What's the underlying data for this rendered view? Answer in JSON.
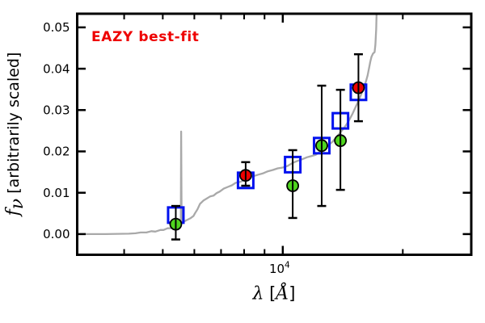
{
  "figure": {
    "annotation": {
      "text": "EAZY best-fit",
      "color": "#ee0000"
    },
    "xlabel_parts": {
      "lambda": "λ",
      "open": " [",
      "angstrom": "Å",
      "close": "]"
    },
    "ylabel_parts": {
      "f": "f",
      "sub": "ν",
      "rest": " [arbitrarily scaled]"
    }
  },
  "chart_data": {
    "type": "line+scatter",
    "title": "",
    "annotation": "EAZY best-fit",
    "xlabel": "λ [Å]",
    "ylabel": "f_ν [arbitrarily scaled]",
    "x_scale": "log",
    "y_scale": "linear",
    "xlim": [
      3050,
      29700
    ],
    "ylim": [
      -0.005,
      0.0533
    ],
    "grid": false,
    "legend": "none",
    "colors": {
      "red": "#ee0000",
      "green": "#4fd41e",
      "blue": "#0011ee",
      "gray": "#a9a9a9",
      "black": "#000000"
    },
    "x_ticks_major": [
      {
        "value": 10000,
        "label_base": "10",
        "label_exp": "4"
      }
    ],
    "x_ticks_minor": [
      4000,
      5000,
      6000,
      7000,
      8000,
      9000,
      20000
    ],
    "y_ticks": [
      {
        "value": 0.0,
        "label": "0.00"
      },
      {
        "value": 0.01,
        "label": "0.01"
      },
      {
        "value": 0.02,
        "label": "0.02"
      },
      {
        "value": 0.03,
        "label": "0.03"
      },
      {
        "value": 0.04,
        "label": "0.04"
      },
      {
        "value": 0.05,
        "label": "0.05"
      }
    ],
    "series": [
      {
        "name": "eazy-model-spectrum",
        "type": "line",
        "color_key": "gray",
        "points": [
          [
            3050,
            0
          ],
          [
            3600,
            0
          ],
          [
            4110,
            0.0001
          ],
          [
            4270,
            0.0002
          ],
          [
            4400,
            0.0004
          ],
          [
            4550,
            0.0004
          ],
          [
            4680,
            0.0007
          ],
          [
            4790,
            0.0006
          ],
          [
            4930,
            0.001
          ],
          [
            5020,
            0.001
          ],
          [
            5140,
            0.0014
          ],
          [
            5240,
            0.0014
          ],
          [
            5340,
            0.0019
          ],
          [
            5470,
            0.0023
          ],
          [
            5530,
            0.0026
          ],
          [
            5550,
            0.0027
          ],
          [
            5560,
            0.0248
          ],
          [
            5575,
            0.0027
          ],
          [
            5720,
            0.0033
          ],
          [
            5860,
            0.0038
          ],
          [
            5970,
            0.0044
          ],
          [
            6020,
            0.005
          ],
          [
            6110,
            0.006
          ],
          [
            6200,
            0.0073
          ],
          [
            6320,
            0.0081
          ],
          [
            6420,
            0.0085
          ],
          [
            6570,
            0.0091
          ],
          [
            6700,
            0.0093
          ],
          [
            6820,
            0.0099
          ],
          [
            6950,
            0.0103
          ],
          [
            7110,
            0.011
          ],
          [
            7280,
            0.0114
          ],
          [
            7450,
            0.0118
          ],
          [
            7620,
            0.0124
          ],
          [
            7800,
            0.0126
          ],
          [
            7980,
            0.013
          ],
          [
            8210,
            0.0136
          ],
          [
            8440,
            0.014
          ],
          [
            8690,
            0.0144
          ],
          [
            8930,
            0.0147
          ],
          [
            9180,
            0.0152
          ],
          [
            9440,
            0.0155
          ],
          [
            9710,
            0.0159
          ],
          [
            10000,
            0.0161
          ],
          [
            10290,
            0.0165
          ],
          [
            10580,
            0.0172
          ],
          [
            10880,
            0.0177
          ],
          [
            11190,
            0.0181
          ],
          [
            11510,
            0.0186
          ],
          [
            11830,
            0.0189
          ],
          [
            12110,
            0.0192
          ],
          [
            12390,
            0.0199
          ],
          [
            12680,
            0.0207
          ],
          [
            12970,
            0.0213
          ],
          [
            13310,
            0.0223
          ],
          [
            13630,
            0.0234
          ],
          [
            13950,
            0.0246
          ],
          [
            14280,
            0.0258
          ],
          [
            14620,
            0.0273
          ],
          [
            14960,
            0.0291
          ],
          [
            15240,
            0.0308
          ],
          [
            15520,
            0.0324
          ],
          [
            15800,
            0.0343
          ],
          [
            16020,
            0.0358
          ],
          [
            16170,
            0.037
          ],
          [
            16320,
            0.0384
          ],
          [
            16470,
            0.0403
          ],
          [
            16580,
            0.0417
          ],
          [
            16690,
            0.0429
          ],
          [
            16840,
            0.0437
          ],
          [
            16990,
            0.044
          ],
          [
            17070,
            0.0458
          ],
          [
            17150,
            0.0496
          ],
          [
            17190,
            0.0535
          ]
        ]
      },
      {
        "name": "template-photometry",
        "type": "scatter",
        "marker": "open-square",
        "color_key": "blue",
        "points": [
          [
            5390,
            0.0046
          ],
          [
            8070,
            0.013
          ],
          [
            10590,
            0.0168
          ],
          [
            12520,
            0.0214
          ],
          [
            13950,
            0.0274
          ],
          [
            15480,
            0.0343
          ]
        ]
      },
      {
        "name": "observed-photometry",
        "type": "scatter",
        "marker": "filled-circle",
        "points": [
          {
            "x": 5390,
            "y": 0.0024,
            "ylo": -0.0013,
            "yhi": 0.0068,
            "color_key": "green"
          },
          {
            "x": 8070,
            "y": 0.0142,
            "ylo": 0.0117,
            "yhi": 0.0174,
            "color_key": "red"
          },
          {
            "x": 10590,
            "y": 0.0117,
            "ylo": 0.0039,
            "yhi": 0.0203,
            "color_key": "green"
          },
          {
            "x": 12520,
            "y": 0.0214,
            "ylo": 0.0068,
            "yhi": 0.0359,
            "color_key": "green"
          },
          {
            "x": 13950,
            "y": 0.0226,
            "ylo": 0.0107,
            "yhi": 0.0349,
            "color_key": "green"
          },
          {
            "x": 15480,
            "y": 0.0354,
            "ylo": 0.0273,
            "yhi": 0.0435,
            "color_key": "red"
          }
        ]
      }
    ]
  }
}
